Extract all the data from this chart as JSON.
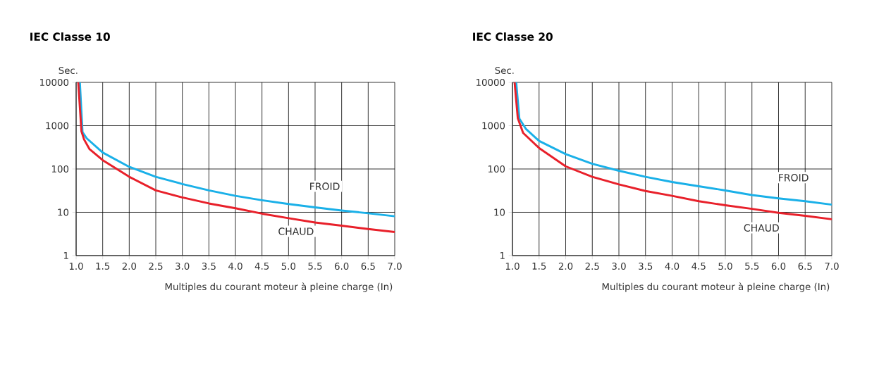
{
  "chart_data": [
    {
      "type": "line",
      "title": "IEC Classe 10",
      "ylabel": "Sec.",
      "xlabel": "Multiples du courant moteur à pleine charge (In)",
      "log": "y",
      "grid": true,
      "xlim": [
        1,
        7
      ],
      "ylim": [
        1,
        10000
      ],
      "xticks": [
        {
          "value": 1,
          "label": "1.0"
        },
        {
          "value": 1.5,
          "label": "1.5"
        },
        {
          "value": 2,
          "label": "2.0"
        },
        {
          "value": 2.5,
          "label": "2.5"
        },
        {
          "value": 3,
          "label": "3.0"
        },
        {
          "value": 3.5,
          "label": "3.5"
        },
        {
          "value": 4,
          "label": "4.0"
        },
        {
          "value": 4.5,
          "label": "4.5"
        },
        {
          "value": 5,
          "label": "5.0"
        },
        {
          "value": 5.5,
          "label": "5.5"
        },
        {
          "value": 6,
          "label": "6.0"
        },
        {
          "value": 6.5,
          "label": "6.5"
        },
        {
          "value": 7,
          "label": "7.0"
        }
      ],
      "yticks": [
        1,
        10,
        100,
        1000,
        10000
      ],
      "series": [
        {
          "name": "FROID",
          "color": "#1ab0e8",
          "x": [
            1.07,
            1.12,
            1.2,
            1.5,
            2,
            2.5,
            3,
            3.5,
            4,
            4.5,
            5,
            5.5,
            6,
            6.5,
            7
          ],
          "values": [
            10000,
            710,
            510,
            240,
            112,
            66,
            45,
            32,
            24,
            19,
            15.5,
            13,
            11,
            9.5,
            8.1
          ]
        },
        {
          "name": "CHAUD",
          "color": "#e8202a",
          "x": [
            1.04,
            1.1,
            1.15,
            1.25,
            1.5,
            2,
            2.5,
            3,
            3.5,
            4,
            4.5,
            5,
            5.5,
            6,
            6.5,
            7
          ],
          "values": [
            10000,
            740,
            480,
            290,
            160,
            66,
            32,
            22,
            16,
            12.4,
            9.3,
            7.3,
            5.8,
            4.9,
            4.1,
            3.5
          ]
        }
      ]
    },
    {
      "type": "line",
      "title": "IEC Classe 20",
      "ylabel": "Sec.",
      "xlabel": "Multiples du courant moteur à pleine charge (In)",
      "log": "y",
      "grid": true,
      "xlim": [
        1,
        7
      ],
      "ylim": [
        1,
        10000
      ],
      "xticks": [
        {
          "value": 1,
          "label": "1.0"
        },
        {
          "value": 1.5,
          "label": "1.5"
        },
        {
          "value": 2,
          "label": "2.0"
        },
        {
          "value": 2.5,
          "label": "2.5"
        },
        {
          "value": 3,
          "label": "3.0"
        },
        {
          "value": 3.5,
          "label": "3.5"
        },
        {
          "value": 4,
          "label": "4.0"
        },
        {
          "value": 4.5,
          "label": "4.5"
        },
        {
          "value": 5,
          "label": "5.0"
        },
        {
          "value": 5.5,
          "label": "5.5"
        },
        {
          "value": 6,
          "label": "6.0"
        },
        {
          "value": 6.5,
          "label": "6.5"
        },
        {
          "value": 7,
          "label": "7.0"
        }
      ],
      "yticks": [
        1,
        10,
        100,
        1000,
        10000
      ],
      "series": [
        {
          "name": "FROID",
          "color": "#1ab0e8",
          "x": [
            1.07,
            1.13,
            1.25,
            1.5,
            2,
            2.5,
            3,
            3.5,
            4,
            4.5,
            5,
            5.5,
            6,
            6.5,
            7
          ],
          "values": [
            10000,
            1450,
            850,
            445,
            220,
            132,
            91,
            66,
            50,
            40,
            32,
            25,
            21,
            18,
            15
          ]
        },
        {
          "name": "CHAUD",
          "color": "#e8202a",
          "x": [
            1.04,
            1.1,
            1.2,
            1.5,
            2,
            2.5,
            3,
            3.5,
            4,
            4.5,
            5,
            5.5,
            6,
            6.5,
            7
          ],
          "values": [
            10000,
            1500,
            680,
            305,
            115,
            66,
            44,
            31,
            24,
            18,
            14.5,
            12,
            9.7,
            8.3,
            6.9
          ]
        }
      ]
    }
  ]
}
